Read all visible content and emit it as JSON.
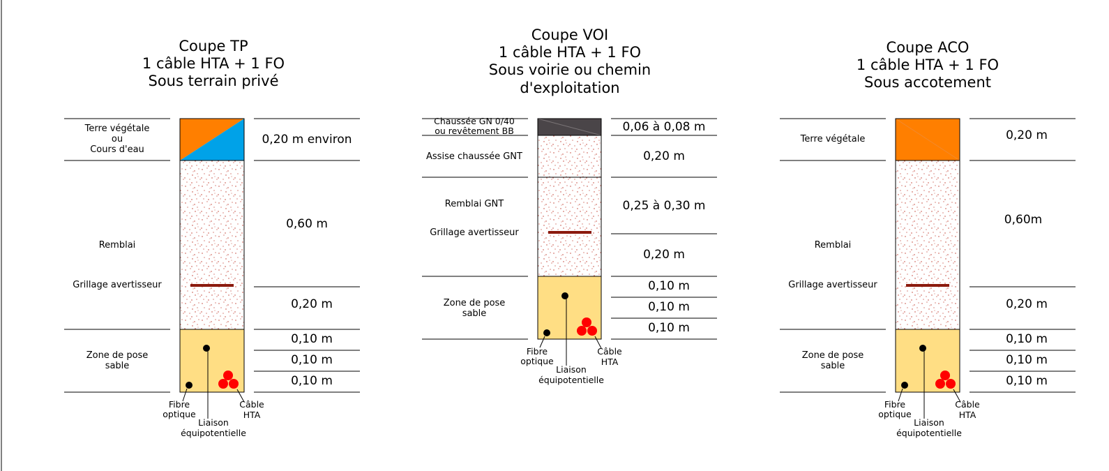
{
  "colors": {
    "topsoil": "#ff7f00",
    "water": "#00a2e8",
    "sand": "#ffde84",
    "fill_speckle": "#c0392b",
    "warning_mesh": "#8b1a0e",
    "road_surface": "#4a4548",
    "cable": "#ff0000",
    "fibre": "#000000"
  },
  "sections": [
    {
      "title_lines": [
        "Coupe TP",
        "1 câble HTA + 1 FO",
        "Sous terrain privé"
      ],
      "layers": {
        "top": [
          "Terre végétale",
          "ou",
          "Cours d'eau"
        ],
        "fill": "Remblai",
        "mesh": "Grillage avertisseur",
        "sand": [
          "Zone de pose",
          "sable"
        ]
      },
      "dims": [
        "0,20 m environ",
        "0,60 m",
        "0,20 m",
        "0,10 m",
        "0,10 m",
        "0,10 m"
      ],
      "callouts": {
        "fibre": [
          "Fibre",
          "optique"
        ],
        "bond": [
          "Liaison",
          "équipotentielle"
        ],
        "cable": [
          "Câble",
          "HTA"
        ]
      }
    },
    {
      "title_lines": [
        "Coupe VOI",
        "1 câble HTA + 1 FO",
        "Sous voirie ou chemin",
        "d'exploitation"
      ],
      "layers": {
        "surface": [
          "Chaussée GN 0/40",
          "ou revêtement BB"
        ],
        "base": "Assise chaussée GNT",
        "fill": "Remblai GNT",
        "mesh": "Grillage avertisseur",
        "sand": [
          "Zone de pose",
          "sable"
        ]
      },
      "dims": [
        "0,06 à 0,08 m",
        "0,20 m",
        "0,25 à 0,30 m",
        "0,20 m",
        "0,10 m",
        "0,10 m",
        "0,10 m"
      ],
      "callouts": {
        "fibre": [
          "Fibre",
          "optique"
        ],
        "bond": [
          "Liaison",
          "équipotentielle"
        ],
        "cable": [
          "Câble",
          "HTA"
        ]
      }
    },
    {
      "title_lines": [
        "Coupe ACO",
        "1 câble HTA + 1 FO",
        "Sous accotement"
      ],
      "layers": {
        "top": "Terre végétale",
        "fill": "Remblai",
        "mesh": "Grillage avertisseur",
        "sand": [
          "Zone de pose",
          "sable"
        ]
      },
      "dims": [
        "0,20 m",
        "0,60m",
        "0,20 m",
        "0,10 m",
        "0,10 m",
        "0,10 m"
      ],
      "callouts": {
        "fibre": [
          "Fibre",
          "optique"
        ],
        "bond": [
          "Liaison",
          "équipotentielle"
        ],
        "cable": [
          "Câble",
          "HTA"
        ]
      }
    }
  ]
}
